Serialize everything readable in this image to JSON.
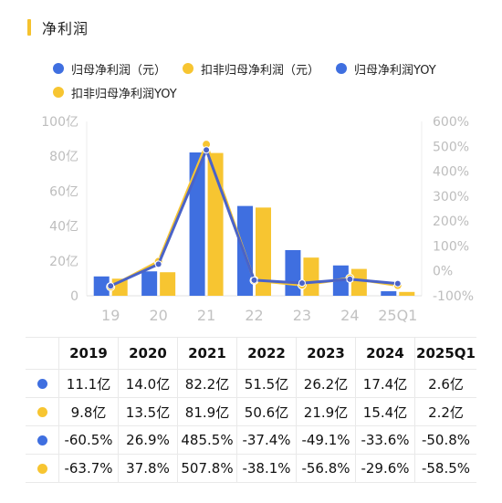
{
  "header": {
    "title": "净利润"
  },
  "colors": {
    "blue": "#3f6fe0",
    "yellow": "#f7c531",
    "accent": "#f5c22e"
  },
  "legend": [
    {
      "label": "归母净利润（元）",
      "color": "#3f6fe0"
    },
    {
      "label": "扣非归母净利润（元）",
      "color": "#f7c531"
    },
    {
      "label": "归母净利润YOY",
      "color": "#3f6fe0"
    },
    {
      "label": "扣非归母净利润YOY",
      "color": "#f7c531"
    }
  ],
  "chart_data": {
    "type": "bar",
    "categories": [
      "19",
      "20",
      "21",
      "22",
      "23",
      "24",
      "25Q1"
    ],
    "series": [
      {
        "name": "归母净利润（元）",
        "type": "bar",
        "axis": "left",
        "values": [
          11.1,
          14.0,
          82.2,
          51.5,
          26.2,
          17.4,
          2.6
        ]
      },
      {
        "name": "扣非归母净利润（元）",
        "type": "bar",
        "axis": "left",
        "values": [
          9.8,
          13.5,
          81.9,
          50.6,
          21.9,
          15.4,
          2.2
        ]
      },
      {
        "name": "归母净利润YOY",
        "type": "line",
        "axis": "right",
        "values": [
          -60.5,
          26.9,
          485.5,
          -37.4,
          -49.1,
          -33.6,
          -50.8
        ]
      },
      {
        "name": "扣非归母净利润YOY",
        "type": "line",
        "axis": "right",
        "values": [
          -63.7,
          37.8,
          507.8,
          -38.1,
          -56.8,
          -29.6,
          -58.5
        ]
      }
    ],
    "left_axis": {
      "ticks": [
        "0",
        "20亿",
        "40亿",
        "60亿",
        "80亿",
        "100亿"
      ],
      "range": [
        0,
        100
      ]
    },
    "right_axis": {
      "ticks": [
        "-100%",
        "0%",
        "100%",
        "200%",
        "300%",
        "400%",
        "500%",
        "600%"
      ],
      "range": [
        -100,
        600
      ]
    }
  },
  "table": {
    "headers": [
      "2019",
      "2020",
      "2021",
      "2022",
      "2023",
      "2024",
      "2025Q1"
    ],
    "rows": [
      {
        "color": "#3f6fe0",
        "cells": [
          "11.1亿",
          "14.0亿",
          "82.2亿",
          "51.5亿",
          "26.2亿",
          "17.4亿",
          "2.6亿"
        ]
      },
      {
        "color": "#f7c531",
        "cells": [
          "9.8亿",
          "13.5亿",
          "81.9亿",
          "50.6亿",
          "21.9亿",
          "15.4亿",
          "2.2亿"
        ]
      },
      {
        "color": "#3f6fe0",
        "cells": [
          "-60.5%",
          "26.9%",
          "485.5%",
          "-37.4%",
          "-49.1%",
          "-33.6%",
          "-50.8%"
        ]
      },
      {
        "color": "#f7c531",
        "cells": [
          "-63.7%",
          "37.8%",
          "507.8%",
          "-38.1%",
          "-56.8%",
          "-29.6%",
          "-58.5%"
        ]
      }
    ]
  }
}
